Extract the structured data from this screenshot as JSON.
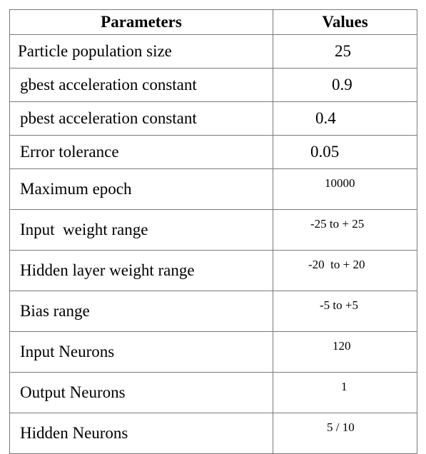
{
  "table": {
    "header": {
      "parameters": "Parameters",
      "values": "Values"
    },
    "rows": [
      {
        "parameter": "Particle population size",
        "value": "25"
      },
      {
        "parameter": "gbest acceleration constant",
        "value": "0.9"
      },
      {
        "parameter": "pbest acceleration constant",
        "value": "0.4"
      },
      {
        "parameter": "Error tolerance",
        "value": "0.05"
      },
      {
        "parameter": "Maximum epoch",
        "value": "10000"
      },
      {
        "parameter": "Input  weight range",
        "value": "-25 to + 25"
      },
      {
        "parameter": "Hidden layer weight range",
        "value": "-20  to + 20"
      },
      {
        "parameter": "Bias range",
        "value": "-5 to +5"
      },
      {
        "parameter": "Input Neurons",
        "value": "120"
      },
      {
        "parameter": "Output Neurons",
        "value": "1"
      },
      {
        "parameter": "Hidden Neurons",
        "value": "5 / 10"
      }
    ]
  }
}
